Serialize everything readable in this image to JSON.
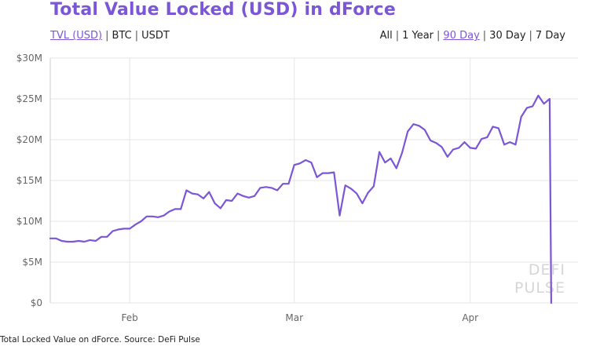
{
  "title": "Total Value Locked (USD) in dForce",
  "currency_options": [
    {
      "label": "TVL (USD)",
      "active": true
    },
    {
      "label": "BTC",
      "active": false
    },
    {
      "label": "USDT",
      "active": false
    }
  ],
  "range_options": [
    {
      "label": "All",
      "active": false
    },
    {
      "label": "1 Year",
      "active": false
    },
    {
      "label": "90 Day",
      "active": true
    },
    {
      "label": "30 Day",
      "active": false
    },
    {
      "label": "7 Day",
      "active": false
    }
  ],
  "watermark": [
    "DEFI",
    "PULSE"
  ],
  "caption": "Total Locked Value on dForce. Source: DeFi Pulse",
  "colors": {
    "accent": "#7b56d6",
    "line": "#7b56d6",
    "grid": "#e6e6e6"
  },
  "chart_data": {
    "type": "line",
    "title": "Total Value Locked (USD) in dForce",
    "xlabel": "",
    "ylabel": "",
    "x_range": [
      "2020-01-18",
      "2020-04-20"
    ],
    "x_ticks": [
      {
        "label": "Feb",
        "date": "2020-02-01"
      },
      {
        "label": "Mar",
        "date": "2020-03-01"
      },
      {
        "label": "Apr",
        "date": "2020-04-01"
      }
    ],
    "y_ticks": [
      {
        "label": "$0",
        "value": 0
      },
      {
        "label": "$5M",
        "value": 5000000
      },
      {
        "label": "$10M",
        "value": 10000000
      },
      {
        "label": "$15M",
        "value": 15000000
      },
      {
        "label": "$20M",
        "value": 20000000
      },
      {
        "label": "$25M",
        "value": 25000000
      },
      {
        "label": "$30M",
        "value": 30000000
      }
    ],
    "ylim": [
      0,
      30000000
    ],
    "grid": true,
    "series": [
      {
        "points": [
          [
            "2020-01-18",
            7.9
          ],
          [
            "2020-01-19",
            7.9
          ],
          [
            "2020-01-20",
            7.6
          ],
          [
            "2020-01-21",
            7.5
          ],
          [
            "2020-01-22",
            7.5
          ],
          [
            "2020-01-23",
            7.6
          ],
          [
            "2020-01-24",
            7.5
          ],
          [
            "2020-01-25",
            7.7
          ],
          [
            "2020-01-26",
            7.6
          ],
          [
            "2020-01-27",
            8.1
          ],
          [
            "2020-01-28",
            8.1
          ],
          [
            "2020-01-29",
            8.8
          ],
          [
            "2020-01-30",
            9.0
          ],
          [
            "2020-01-31",
            9.1
          ],
          [
            "2020-02-01",
            9.1
          ],
          [
            "2020-02-02",
            9.6
          ],
          [
            "2020-02-03",
            10.0
          ],
          [
            "2020-02-04",
            10.6
          ],
          [
            "2020-02-05",
            10.6
          ],
          [
            "2020-02-06",
            10.5
          ],
          [
            "2020-02-07",
            10.7
          ],
          [
            "2020-02-08",
            11.2
          ],
          [
            "2020-02-09",
            11.5
          ],
          [
            "2020-02-10",
            11.5
          ],
          [
            "2020-02-11",
            13.8
          ],
          [
            "2020-02-12",
            13.4
          ],
          [
            "2020-02-13",
            13.3
          ],
          [
            "2020-02-14",
            12.8
          ],
          [
            "2020-02-15",
            13.6
          ],
          [
            "2020-02-16",
            12.2
          ],
          [
            "2020-02-17",
            11.6
          ],
          [
            "2020-02-18",
            12.6
          ],
          [
            "2020-02-19",
            12.5
          ],
          [
            "2020-02-20",
            13.4
          ],
          [
            "2020-02-21",
            13.1
          ],
          [
            "2020-02-22",
            12.9
          ],
          [
            "2020-02-23",
            13.1
          ],
          [
            "2020-02-24",
            14.1
          ],
          [
            "2020-02-25",
            14.2
          ],
          [
            "2020-02-26",
            14.1
          ],
          [
            "2020-02-27",
            13.8
          ],
          [
            "2020-02-28",
            14.6
          ],
          [
            "2020-02-29",
            14.6
          ],
          [
            "2020-03-01",
            16.9
          ],
          [
            "2020-03-02",
            17.1
          ],
          [
            "2020-03-03",
            17.5
          ],
          [
            "2020-03-04",
            17.2
          ],
          [
            "2020-03-05",
            15.4
          ],
          [
            "2020-03-06",
            15.9
          ],
          [
            "2020-03-07",
            15.9
          ],
          [
            "2020-03-08",
            16.0
          ],
          [
            "2020-03-09",
            10.7
          ],
          [
            "2020-03-10",
            14.4
          ],
          [
            "2020-03-11",
            14.0
          ],
          [
            "2020-03-12",
            13.4
          ],
          [
            "2020-03-13",
            12.2
          ],
          [
            "2020-03-14",
            13.5
          ],
          [
            "2020-03-15",
            14.3
          ],
          [
            "2020-03-16",
            18.5
          ],
          [
            "2020-03-17",
            17.2
          ],
          [
            "2020-03-18",
            17.7
          ],
          [
            "2020-03-19",
            16.5
          ],
          [
            "2020-03-20",
            18.4
          ],
          [
            "2020-03-21",
            21.0
          ],
          [
            "2020-03-22",
            21.9
          ],
          [
            "2020-03-23",
            21.7
          ],
          [
            "2020-03-24",
            21.2
          ],
          [
            "2020-03-25",
            19.9
          ],
          [
            "2020-03-26",
            19.6
          ],
          [
            "2020-03-27",
            19.1
          ],
          [
            "2020-03-28",
            17.9
          ],
          [
            "2020-03-29",
            18.8
          ],
          [
            "2020-03-30",
            19.0
          ],
          [
            "2020-03-31",
            19.7
          ],
          [
            "2020-04-01",
            19.0
          ],
          [
            "2020-04-02",
            18.9
          ],
          [
            "2020-04-03",
            20.1
          ],
          [
            "2020-04-04",
            20.3
          ],
          [
            "2020-04-05",
            21.6
          ],
          [
            "2020-04-06",
            21.4
          ],
          [
            "2020-04-07",
            19.4
          ],
          [
            "2020-04-08",
            19.7
          ],
          [
            "2020-04-09",
            19.4
          ],
          [
            "2020-04-10",
            22.8
          ],
          [
            "2020-04-11",
            23.9
          ],
          [
            "2020-04-12",
            24.1
          ],
          [
            "2020-04-13",
            25.4
          ],
          [
            "2020-04-14",
            24.4
          ],
          [
            "2020-04-15",
            25.0
          ],
          [
            "2020-04-15",
            0.0
          ]
        ],
        "unit": "millions USD"
      }
    ]
  }
}
